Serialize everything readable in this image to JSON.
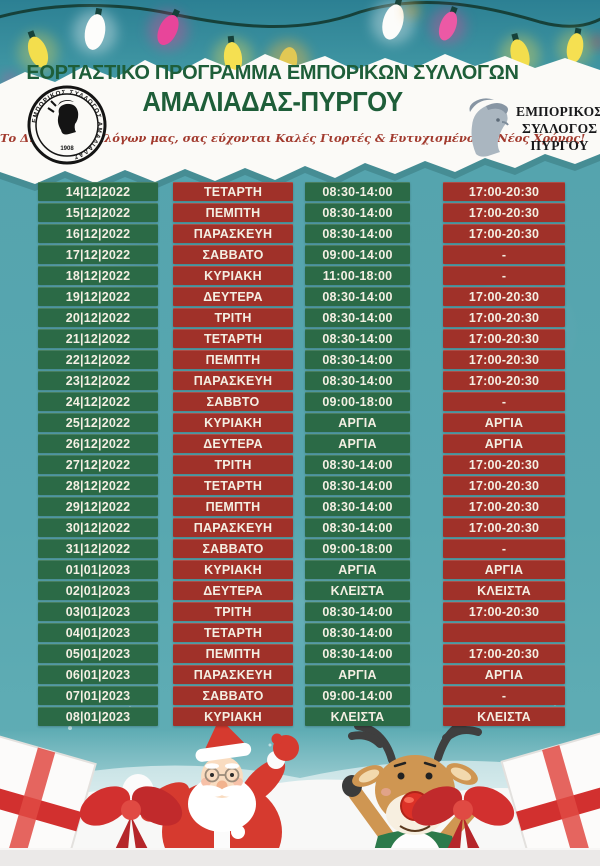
{
  "poster": {
    "title_line1": "ΕΟΡΤΑΣΤΙΚΟ ΠΡΟΓΡΑΜΜΑ ΕΜΠΟΡΙΚΩΝ ΣΥΛΛΟΓΩΝ",
    "title_line2": "ΑΜΑΛΙΑΔΑΣ-ΠΥΡΓΟΥ",
    "subtitle": "Το Δ.Σ. των Συλλόγων μας, σας εύχονται Καλές Γιορτές & Ευτυχισμένος ο Νέος Χρόνος!",
    "logo_left": {
      "circular_text": "ΕΜΠΟΡΙΚΟΣ ΣΥΛΛΟΓΟΣ ΑΜΑΛΙΑΔΑΣ",
      "year": "1908"
    },
    "logo_right": {
      "line1": "ΕΜΠΟΡΙΚΟΣ",
      "line2": "ΣΥΛΛΟΓΟΣ",
      "line3": "ΠΥΡΓΟΥ"
    }
  },
  "colors": {
    "bg_teal": "#4f9fab",
    "cell_green": "#2b6a46",
    "cell_red": "#a03129",
    "title_green": "#1e5e39",
    "script_red": "#a23a2e",
    "cell_text": "#f4efe3"
  },
  "schedule": {
    "columns": [
      "date",
      "day",
      "morning",
      "evening"
    ],
    "rows": [
      {
        "date": "14|12|2022",
        "day": "ΤΕΤΑΡΤΗ",
        "morning": "08:30-14:00",
        "evening": "17:00-20:30"
      },
      {
        "date": "15|12|2022",
        "day": "ΠΕΜΠΤΗ",
        "morning": "08:30-14:00",
        "evening": "17:00-20:30"
      },
      {
        "date": "16|12|2022",
        "day": "ΠΑΡΑΣΚΕΥΗ",
        "morning": "08:30-14:00",
        "evening": "17:00-20:30"
      },
      {
        "date": "17|12|2022",
        "day": "ΣΑΒΒΑΤΟ",
        "morning": "09:00-14:00",
        "evening": "-"
      },
      {
        "date": "18|12|2022",
        "day": "ΚΥΡΙΑΚΗ",
        "morning": "11:00-18:00",
        "evening": "-"
      },
      {
        "date": "19|12|2022",
        "day": "ΔΕΥΤΕΡΑ",
        "morning": "08:30-14:00",
        "evening": "17:00-20:30"
      },
      {
        "date": "20|12|2022",
        "day": "ΤΡΙΤΗ",
        "morning": "08:30-14:00",
        "evening": "17:00-20:30"
      },
      {
        "date": "21|12|2022",
        "day": "ΤΕΤΑΡΤΗ",
        "morning": "08:30-14:00",
        "evening": "17:00-20:30"
      },
      {
        "date": "22|12|2022",
        "day": "ΠΕΜΠΤΗ",
        "morning": "08:30-14:00",
        "evening": "17:00-20:30"
      },
      {
        "date": "23|12|2022",
        "day": "ΠΑΡΑΣΚΕΥΗ",
        "morning": "08:30-14:00",
        "evening": "17:00-20:30"
      },
      {
        "date": "24|12|2022",
        "day": "ΣΑΒΒΤΟ",
        "morning": "09:00-18:00",
        "evening": "-"
      },
      {
        "date": "25|12|2022",
        "day": "ΚΥΡΙΑΚΗ",
        "morning": "ΑΡΓΙΑ",
        "evening": "ΑΡΓΙΑ"
      },
      {
        "date": "26|12|2022",
        "day": "ΔΕΥΤΕΡΑ",
        "morning": "ΑΡΓΙΑ",
        "evening": "ΑΡΓΙΑ"
      },
      {
        "date": "27|12|2022",
        "day": "ΤΡΙΤΗ",
        "morning": "08:30-14:00",
        "evening": "17:00-20:30"
      },
      {
        "date": "28|12|2022",
        "day": "ΤΕΤΑΡΤΗ",
        "morning": "08:30-14:00",
        "evening": "17:00-20:30"
      },
      {
        "date": "29|12|2022",
        "day": "ΠΕΜΠΤΗ",
        "morning": "08:30-14:00",
        "evening": "17:00-20:30"
      },
      {
        "date": "30|12|2022",
        "day": "ΠΑΡΑΣΚΕΥΗ",
        "morning": "08:30-14:00",
        "evening": "17:00-20:30"
      },
      {
        "date": "31|12|2022",
        "day": "ΣΑΒΒΑΤΟ",
        "morning": "09:00-18:00",
        "evening": "-"
      },
      {
        "date": "01|01|2023",
        "day": "ΚΥΡΙΑΚΗ",
        "morning": "ΑΡΓΙΑ",
        "evening": "ΑΡΓΙΑ"
      },
      {
        "date": "02|01|2023",
        "day": "ΔΕΥΤΕΡΑ",
        "morning": "ΚΛΕΙΣΤΑ",
        "evening": "ΚΛΕΙΣΤΑ"
      },
      {
        "date": "03|01|2023",
        "day": "ΤΡΙΤΗ",
        "morning": "08:30-14:00",
        "evening": "17:00-20:30"
      },
      {
        "date": "04|01|2023",
        "day": "ΤΕΤΑΡΤΗ",
        "morning": "08:30-14:00",
        "evening": ""
      },
      {
        "date": "05|01|2023",
        "day": "ΠΕΜΠΤΗ",
        "morning": "08:30-14:00",
        "evening": "17:00-20:30"
      },
      {
        "date": "06|01|2023",
        "day": "ΠΑΡΑΣΚΕΥΗ",
        "morning": "ΑΡΓΙΑ",
        "evening": "ΑΡΓΙΑ"
      },
      {
        "date": "07|01|2023",
        "day": "ΣΑΒΒΑΤΟ",
        "morning": "09:00-14:00",
        "evening": "-"
      },
      {
        "date": "08|01|2023",
        "day": "ΚΥΡΙΑΚΗ",
        "morning": "ΚΛΕΙΣΤΑ",
        "evening": "ΚΛΕΙΣΤΑ"
      }
    ]
  }
}
